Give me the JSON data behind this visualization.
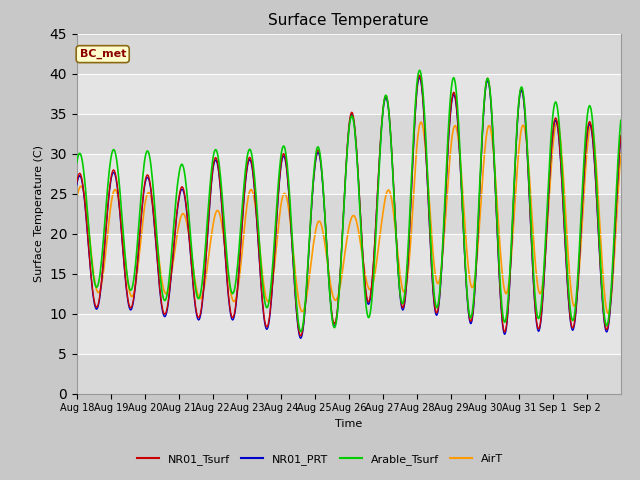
{
  "title": "Surface Temperature",
  "ylabel": "Surface Temperature (C)",
  "xlabel": "Time",
  "annotation": "BC_met",
  "ylim": [
    0,
    45
  ],
  "yticks": [
    0,
    5,
    10,
    15,
    20,
    25,
    30,
    35,
    40,
    45
  ],
  "legend_labels": [
    "NR01_Tsurf",
    "NR01_PRT",
    "Arable_Tsurf",
    "AirT"
  ],
  "line_colors": [
    "#cc0000",
    "#0000cc",
    "#00cc00",
    "#ff9900"
  ],
  "fig_bg": "#c8c8c8",
  "plot_bg": "#e8e8e8",
  "band_colors": [
    "#d8d8d8",
    "#e4e4e4"
  ],
  "xtick_labels": [
    "Aug 18",
    "Aug 19",
    "Aug 20",
    "Aug 21",
    "Aug 22",
    "Aug 23",
    "Aug 24",
    "Aug 25",
    "Aug 26",
    "Aug 27",
    "Aug 28",
    "Aug 29",
    "Aug 30",
    "Aug 31",
    "Sep 1",
    "Sep 2"
  ],
  "daily_mins": [
    10.5,
    11.0,
    10.5,
    9.5,
    9.5,
    9.5,
    7.5,
    7.0,
    10.0,
    12.5,
    9.5,
    10.5,
    8.0,
    7.5,
    8.5,
    8.0
  ],
  "daily_maxs": [
    27.5,
    28.0,
    27.5,
    25.5,
    29.5,
    29.5,
    30.0,
    30.0,
    35.0,
    37.0,
    40.0,
    37.5,
    39.5,
    38.5,
    34.5,
    34.0
  ],
  "prt_mins": [
    10.2,
    10.8,
    10.2,
    9.2,
    9.2,
    9.2,
    7.2,
    6.7,
    9.7,
    12.2,
    9.2,
    10.2,
    7.7,
    7.2,
    8.2,
    7.7
  ],
  "prt_maxs": [
    27.2,
    27.7,
    27.2,
    25.2,
    29.2,
    29.2,
    29.7,
    29.7,
    34.7,
    36.7,
    39.7,
    37.2,
    39.2,
    38.2,
    34.2,
    33.7
  ],
  "arable_mins": [
    13.0,
    13.5,
    12.5,
    11.0,
    12.5,
    12.5,
    9.5,
    6.5,
    9.5,
    9.5,
    12.5,
    9.5,
    9.5,
    8.5,
    10.0,
    8.5
  ],
  "arable_maxs": [
    30.0,
    30.5,
    30.5,
    28.5,
    30.5,
    30.5,
    31.0,
    30.5,
    34.5,
    37.0,
    40.5,
    39.5,
    39.5,
    38.5,
    36.5,
    36.0
  ],
  "air_mins": [
    14.5,
    11.5,
    12.5,
    12.5,
    11.5,
    11.5,
    11.5,
    9.5,
    13.0,
    13.0,
    12.5,
    14.5,
    12.5,
    12.5,
    12.5,
    10.0
  ],
  "air_maxs": [
    26.0,
    25.5,
    25.5,
    22.5,
    22.5,
    25.5,
    25.5,
    21.5,
    22.0,
    24.0,
    34.0,
    33.5,
    33.5,
    33.5,
    34.0,
    33.5
  ]
}
